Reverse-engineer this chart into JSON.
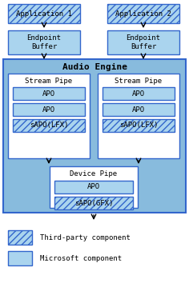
{
  "bg_color": "#ffffff",
  "box_fill": "#aad4ee",
  "box_edge": "#3366cc",
  "engine_bg": "#88bbdd",
  "white_box": "#ffffff",
  "hatch_color": "#aad4ee",
  "title": "Audio Engine",
  "app1": "Application 1",
  "app2": "Application 2",
  "ep_buffer": "Endpoint\nBuffer",
  "stream_pipe": "Stream Pipe",
  "device_pipe": "Device Pipe",
  "apo": "APO",
  "sapo_lfx": "sAPO(LFX)",
  "sapo_gfx": "sAPO(GFX)",
  "legend_third": "Third-party component",
  "legend_ms": "Microsoft component",
  "figw": 2.36,
  "figh": 3.54,
  "dpi": 100
}
